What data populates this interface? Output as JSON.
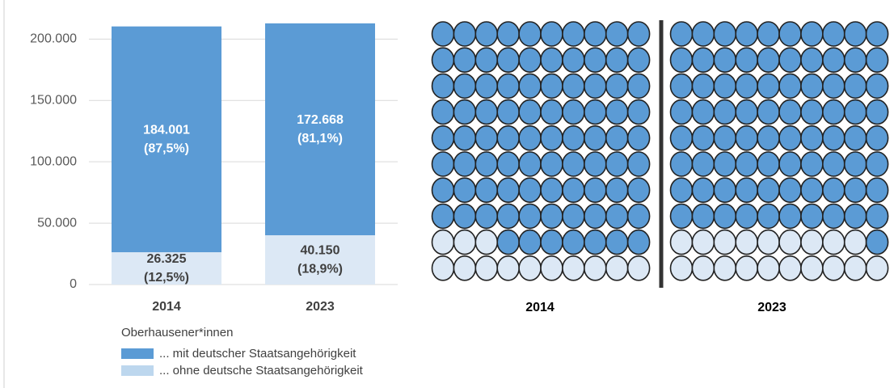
{
  "chart_data": [
    {
      "type": "bar",
      "stacked": true,
      "categories": [
        "2014",
        "2023"
      ],
      "legend_title": "Oberhausener*innen",
      "series": [
        {
          "name": "... ohne deutsche Staatsangehörigkeit",
          "color": "#dce8f5",
          "legend_color": "#bdd7ee",
          "label_color": "#404040",
          "values": [
            26325,
            40150
          ],
          "value_labels": [
            "26.325",
            "40.150"
          ],
          "share_labels": [
            "(12,5%)",
            "(18,9%)"
          ]
        },
        {
          "name": "... mit deutscher Staatsangehörigkeit",
          "color": "#5b9bd5",
          "legend_color": "#5b9bd5",
          "label_color": "#ffffff",
          "values": [
            184001,
            172668
          ],
          "value_labels": [
            "184.001",
            "172.668"
          ],
          "share_labels": [
            "(87,5%)",
            "(81,1%)"
          ]
        }
      ],
      "ylim": [
        0,
        220000
      ],
      "yticks": [
        0,
        {
          "value": 50000,
          "label": "50.000"
        },
        {
          "value": 100000,
          "label": "100.000"
        },
        {
          "value": 150000,
          "label": "150.000"
        },
        {
          "value": 200000,
          "label": "200.000"
        }
      ],
      "grid": true
    },
    {
      "type": "waffle",
      "categories": [
        "2014",
        "2023"
      ],
      "series": [
        {
          "color": "#dce8f5",
          "values": [
            13,
            19
          ]
        },
        {
          "color": "#5b9bd5",
          "values": [
            87,
            81
          ]
        }
      ]
    }
  ]
}
